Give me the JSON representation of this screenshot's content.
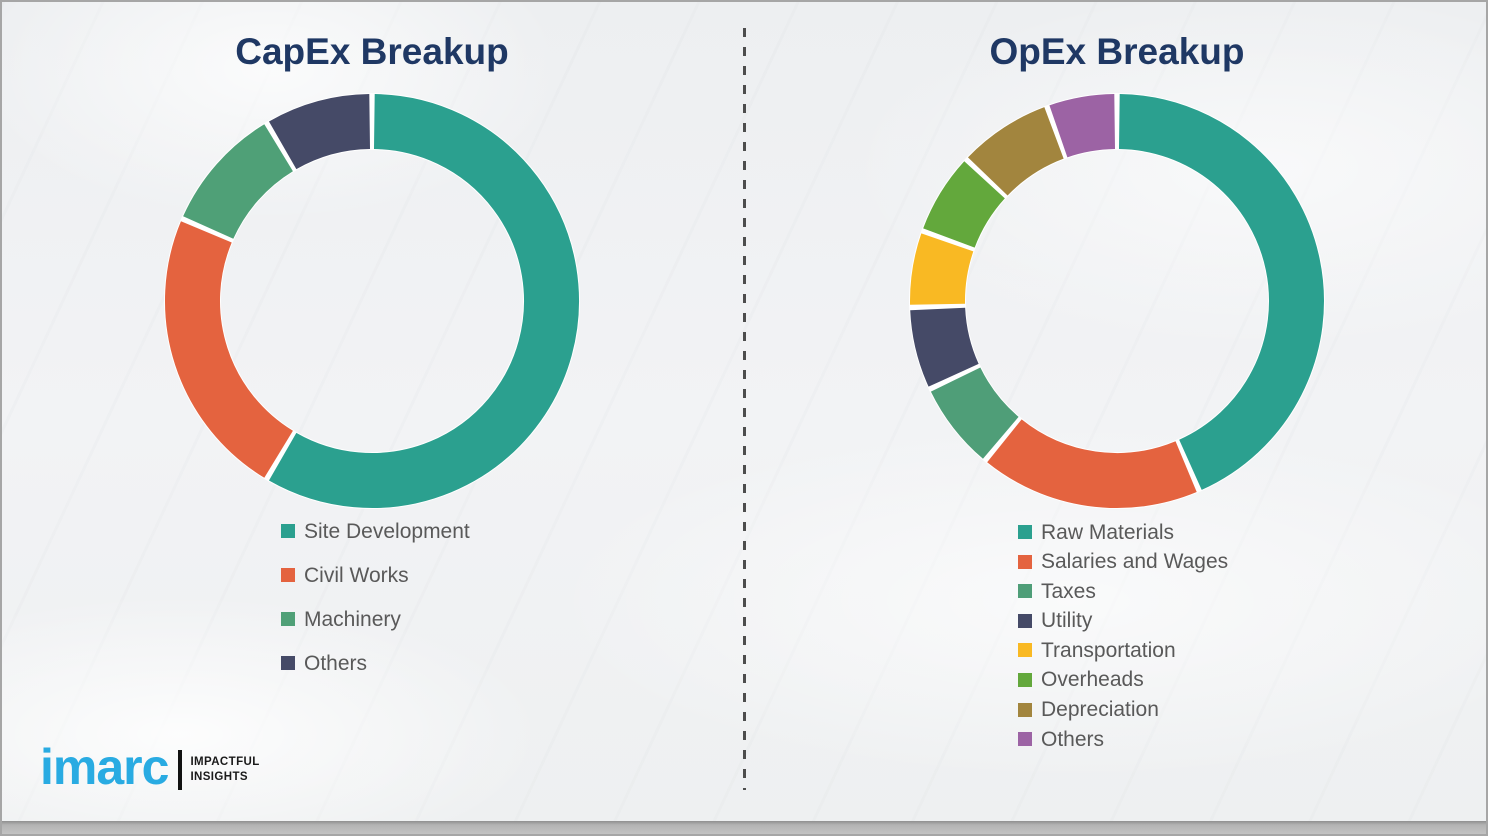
{
  "page": {
    "background_color": "#eff1f2",
    "divider_color": "#4d4d4d",
    "title_color": "#1f3864",
    "legend_text_color": "#595959",
    "footer_bar_color": "#b3b3b3"
  },
  "chart_data": [
    {
      "type": "pie",
      "subtype": "donut",
      "title": "CapEx Breakup",
      "categories": [
        "Site Development",
        "Civil Works",
        "Machinery",
        "Others"
      ],
      "values": [
        58.5,
        23,
        10,
        8.5
      ],
      "colors": [
        "#2BA08F",
        "#E4633F",
        "#4FA077",
        "#454A67"
      ],
      "unit": "percent",
      "legend_position": "below-left",
      "data_labels_shown": false
    },
    {
      "type": "pie",
      "subtype": "donut",
      "title": "OpEx Breakup",
      "categories": [
        "Raw Materials",
        "Salaries and Wages",
        "Taxes",
        "Utility",
        "Transportation",
        "Overheads",
        "Depreciation",
        "Others"
      ],
      "values": [
        43.5,
        17.5,
        7,
        6.5,
        6,
        6.5,
        7.5,
        5.5
      ],
      "colors": [
        "#2BA08F",
        "#E4633F",
        "#4F9E78",
        "#454A67",
        "#F9B923",
        "#63A83C",
        "#A2853E",
        "#9C63A4"
      ],
      "unit": "percent",
      "legend_position": "below-left",
      "data_labels_shown": false
    }
  ],
  "branding": {
    "logo_text": "imarc",
    "tagline_line1": "IMPACTFUL",
    "tagline_line2": "INSIGHTS",
    "logo_color": "#29abe2"
  }
}
